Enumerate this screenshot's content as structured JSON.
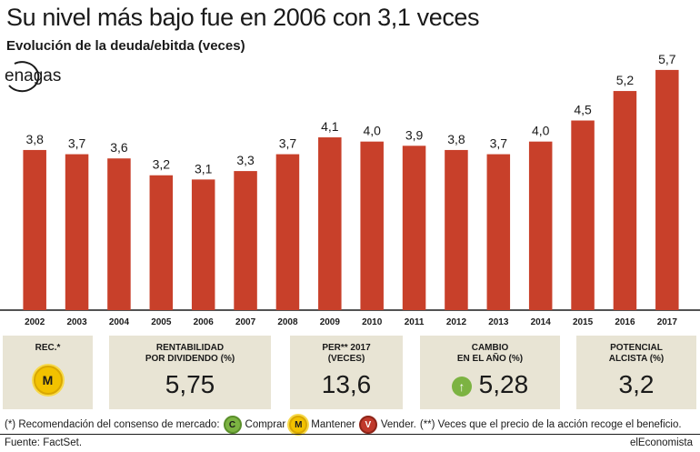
{
  "header": {
    "title": "Su nivel más bajo fue en 2006 con 3,1 veces",
    "subtitle": "Evolución de la deuda/ebitda (veces)",
    "logo_text": "enagas"
  },
  "chart_data": {
    "type": "bar",
    "categories": [
      "2002",
      "2003",
      "2004",
      "2005",
      "2006",
      "2007",
      "2008",
      "2009",
      "2010",
      "2011",
      "2012",
      "2013",
      "2014",
      "2015",
      "2016",
      "2017"
    ],
    "values": [
      3.8,
      3.7,
      3.6,
      3.2,
      3.1,
      3.3,
      3.7,
      4.1,
      4.0,
      3.9,
      3.8,
      3.7,
      4.0,
      4.5,
      5.2,
      5.7
    ],
    "value_labels": [
      "3,8",
      "3,7",
      "3,6",
      "3,2",
      "3,1",
      "3,3",
      "3,7",
      "4,1",
      "4,0",
      "3,9",
      "3,8",
      "3,7",
      "4,0",
      "4,5",
      "5,2",
      "5,7"
    ],
    "ylim": [
      0,
      6
    ],
    "bar_color": "#c8402a"
  },
  "tiles": {
    "rec": {
      "label": "REC.*",
      "badge": "M"
    },
    "rentabilidad": {
      "label_line1": "RENTABILIDAD",
      "label_line2": "POR DIVIDENDO (%)",
      "value": "5,75"
    },
    "per": {
      "label_line1": "PER** 2017",
      "label_line2": "(VECES)",
      "value": "13,6"
    },
    "cambio": {
      "label_line1": "CAMBIO",
      "label_line2": "EN EL AÑO (%)",
      "value": "5,28",
      "icon": "arrow-up-icon"
    },
    "potencial": {
      "label_line1": "POTENCIAL",
      "label_line2": "ALCISTA (%)",
      "value": "3,2"
    }
  },
  "footnote": {
    "prefix": "(*) Recomendación del consenso de mercado:",
    "comprar_badge": "C",
    "comprar": "Comprar",
    "mantener_badge": "M",
    "mantener": "Mantener",
    "vender_badge": "V",
    "vender": "Vender.",
    "suffix": "(**) Veces que el precio de la acción recoge el beneficio."
  },
  "source": "Fuente: FactSet.",
  "brand": "elEconomista",
  "colors": {
    "tile_bg": "#e8e4d4",
    "bar": "#c8402a",
    "accent_green": "#7cb342",
    "accent_yellow": "#f2c200"
  }
}
